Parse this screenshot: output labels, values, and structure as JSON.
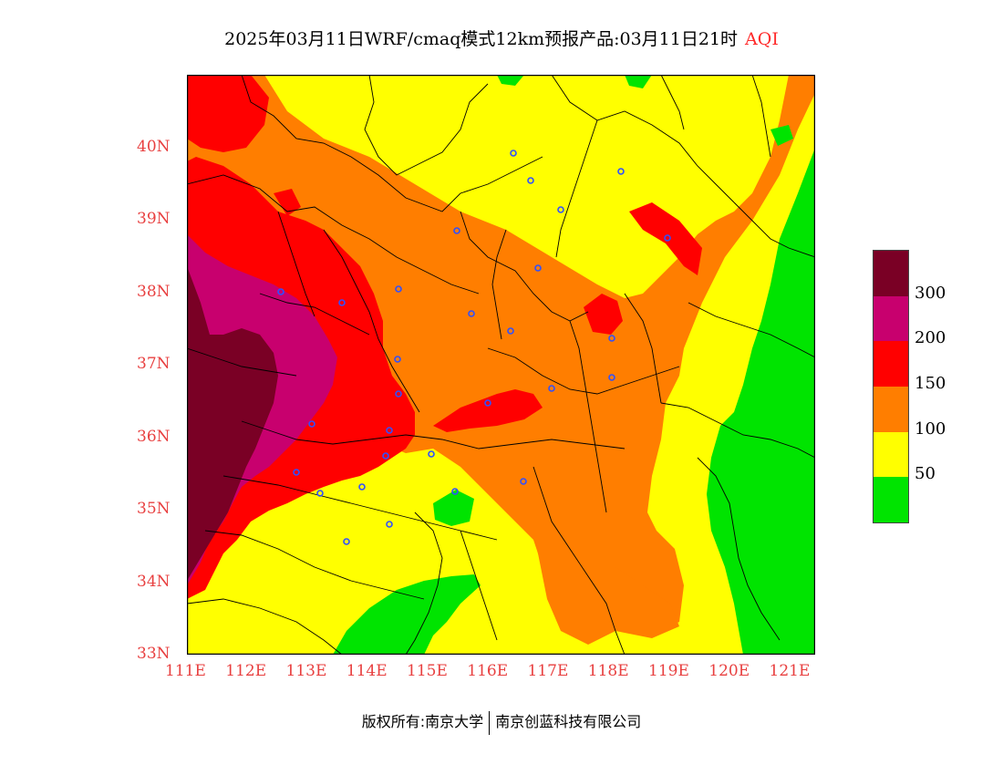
{
  "title": {
    "main": "2025年03月11日WRF/cmaq模式12km预报产品:03月11日21时",
    "variable": "AQI"
  },
  "map": {
    "lon_range": [
      111.0,
      121.4
    ],
    "lat_range": [
      33.0,
      41.0
    ],
    "lon_ticks": [
      "111E",
      "112E",
      "113E",
      "114E",
      "115E",
      "116E",
      "117E",
      "118E",
      "119E",
      "120E",
      "121E"
    ],
    "lat_ticks": [
      "33N",
      "34N",
      "35N",
      "36N",
      "37N",
      "38N",
      "39N",
      "40N"
    ],
    "axis_label_color": "#e84040"
  },
  "legend": {
    "levels": [
      {
        "color": "#7a0025",
        "label": "300"
      },
      {
        "color": "#c8006e",
        "label": "200"
      },
      {
        "color": "#ff0000",
        "label": "150"
      },
      {
        "color": "#ff7e00",
        "label": "100"
      },
      {
        "color": "#ffff00",
        "label": "50"
      },
      {
        "color": "#00e400",
        "label": ""
      }
    ]
  },
  "copyright": {
    "owner": "版权所有:南京大学",
    "partner": "南京创蓝科技有限公司"
  }
}
